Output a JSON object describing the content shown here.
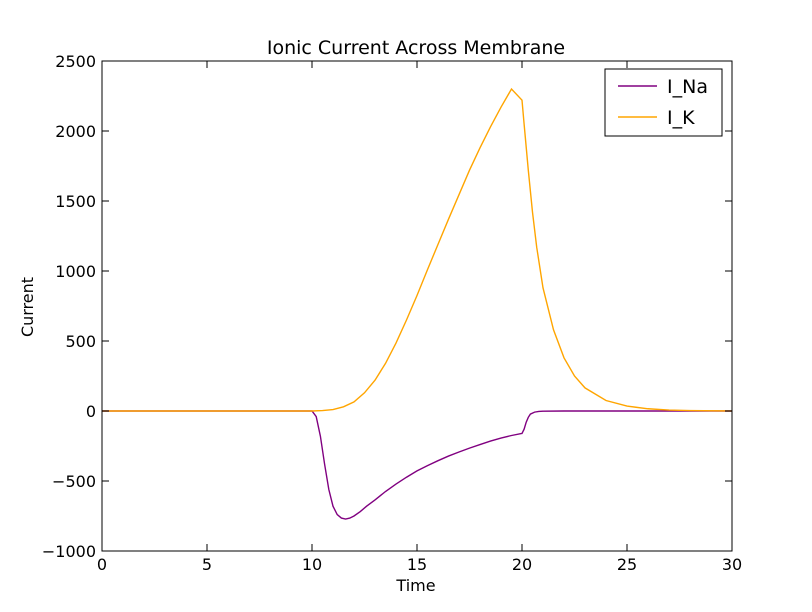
{
  "chart_data": {
    "type": "line",
    "title": "Ionic Current Across Membrane",
    "xlabel": "Time",
    "ylabel": "Current",
    "xlim": [
      0,
      30
    ],
    "ylim": [
      -1000,
      2500
    ],
    "xticks": [
      0,
      5,
      10,
      15,
      20,
      25,
      30
    ],
    "yticks": [
      -1000,
      -500,
      0,
      500,
      1000,
      1500,
      2000,
      2500
    ],
    "xtick_labels": [
      "0",
      "5",
      "10",
      "15",
      "20",
      "25",
      "30"
    ],
    "ytick_labels": [
      "−1000",
      "−500",
      "0",
      "500",
      "1000",
      "1500",
      "2000",
      "2500"
    ],
    "grid": false,
    "legend_position": "top-right",
    "series": [
      {
        "name": "I_Na",
        "color": "#800080",
        "x": [
          0,
          10,
          10.2,
          10.4,
          10.6,
          10.8,
          11.0,
          11.2,
          11.4,
          11.6,
          11.8,
          12.0,
          12.3,
          12.6,
          13.0,
          13.5,
          14.0,
          14.5,
          15.0,
          15.5,
          16.0,
          16.5,
          17.0,
          17.5,
          18.0,
          18.5,
          19.0,
          19.5,
          19.99,
          20.0,
          20.1,
          20.2,
          20.3,
          20.4,
          20.6,
          20.8,
          21.0,
          22.0,
          25.0,
          30.0
        ],
        "y": [
          0,
          0,
          -40,
          -180,
          -380,
          -560,
          -680,
          -740,
          -765,
          -772,
          -765,
          -750,
          -718,
          -680,
          -635,
          -575,
          -522,
          -473,
          -428,
          -390,
          -355,
          -322,
          -293,
          -265,
          -240,
          -215,
          -193,
          -175,
          -160,
          -160,
          -130,
          -80,
          -45,
          -22,
          -8,
          -3,
          -1,
          0,
          0,
          0
        ]
      },
      {
        "name": "I_K",
        "color": "#ffa500",
        "x": [
          0,
          10,
          10.5,
          11,
          11.5,
          12,
          12.5,
          13,
          13.5,
          14,
          14.5,
          15,
          15.5,
          16,
          16.5,
          17,
          17.5,
          18,
          18.5,
          19,
          19.5,
          20.0,
          20.1,
          20.3,
          20.5,
          20.7,
          21.0,
          21.5,
          22.0,
          22.5,
          23.0,
          24.0,
          25.0,
          26.0,
          27.0,
          28.0,
          30.0
        ],
        "y": [
          0,
          0,
          3,
          10,
          30,
          65,
          130,
          220,
          340,
          485,
          650,
          825,
          1010,
          1190,
          1370,
          1545,
          1720,
          1880,
          2030,
          2170,
          2300,
          2220,
          2050,
          1720,
          1420,
          1170,
          880,
          580,
          380,
          250,
          165,
          75,
          35,
          16,
          7,
          3,
          0
        ]
      }
    ]
  }
}
